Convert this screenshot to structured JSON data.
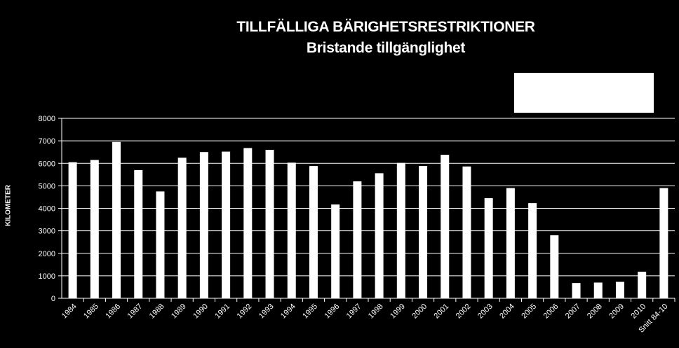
{
  "chart_data": {
    "type": "bar",
    "title": "TILLFÄLLIGA BÄRIGHETSRESTRIKTIONER",
    "subtitle": "Bristande tillgänglighet",
    "ylabel": "KILOMETER",
    "xlabel": "",
    "ylim": [
      0,
      8000
    ],
    "yticks": [
      0,
      1000,
      2000,
      3000,
      4000,
      5000,
      6000,
      7000,
      8000
    ],
    "grid": true,
    "legend": "top-right",
    "categories": [
      "1984",
      "1985",
      "1986",
      "1987",
      "1988",
      "1989",
      "1990",
      "1991",
      "1992",
      "1993",
      "1994",
      "1995",
      "1996",
      "1997",
      "1998",
      "1999",
      "2000",
      "2001",
      "2002",
      "2003",
      "2004",
      "2005",
      "2006",
      "2007",
      "2008",
      "2009",
      "2010",
      "Snitt 84-10"
    ],
    "values": [
      6050,
      6150,
      6950,
      5700,
      4750,
      6250,
      6500,
      6520,
      6680,
      6600,
      6030,
      5880,
      4170,
      5200,
      5560,
      6020,
      5880,
      6380,
      5860,
      4450,
      4900,
      4230,
      2800,
      680,
      700,
      730,
      1180,
      4900
    ],
    "colors": {
      "background": "#000000",
      "bar": "#ffffff",
      "grid": "#ffffff",
      "text": "#ffffff"
    }
  }
}
